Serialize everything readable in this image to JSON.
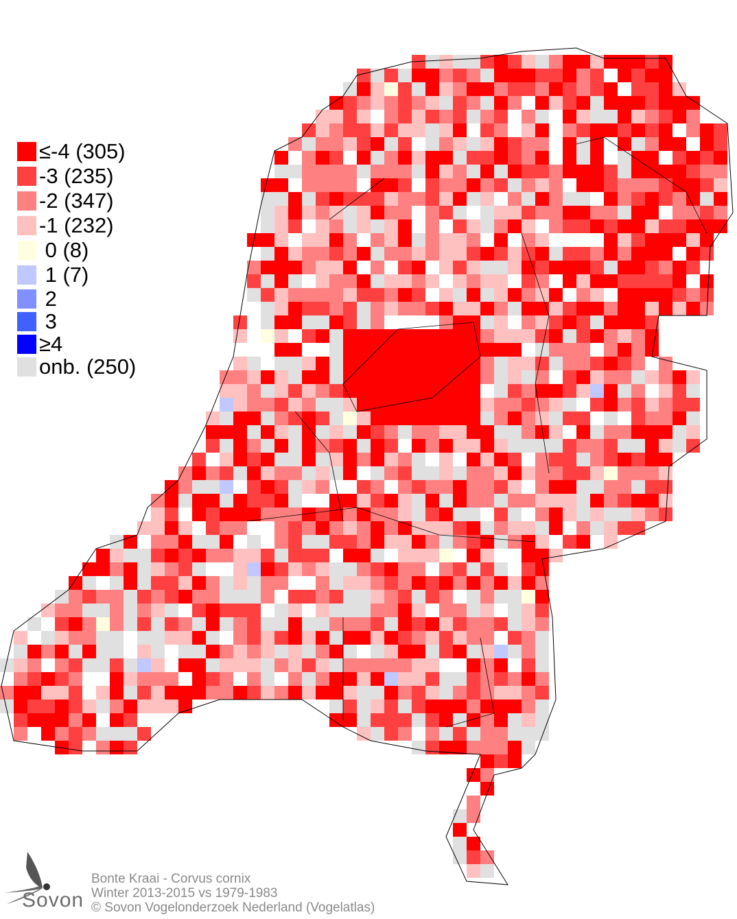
{
  "legend": {
    "items": [
      {
        "label": "≤-4 (305)",
        "color": "#ff0000"
      },
      {
        "label": "-3 (235)",
        "color": "#ff4040"
      },
      {
        "label": "-2 (347)",
        "color": "#ff8080"
      },
      {
        "label": "-1 (232)",
        "color": "#ffc0c0"
      },
      {
        "label": " 0 (8)",
        "color": "#ffffe0"
      },
      {
        "label": " 1 (7)",
        "color": "#c0c8ff"
      },
      {
        "label": " 2",
        "color": "#8090ff"
      },
      {
        "label": " 3",
        "color": "#4060ff"
      },
      {
        "label": "≥4",
        "color": "#0000ff"
      },
      {
        "label": "onb. (250)",
        "color": "#e0e0e0"
      }
    ]
  },
  "footer": {
    "species": "Bonte Kraai - Corvus cornix",
    "period": "Winter 2013-2015 vs 1979-1983",
    "copyright": "© Sovon Vogelonderzoek Nederland (Vogelatlas)"
  },
  "logo": {
    "text": "Sovon"
  }
}
